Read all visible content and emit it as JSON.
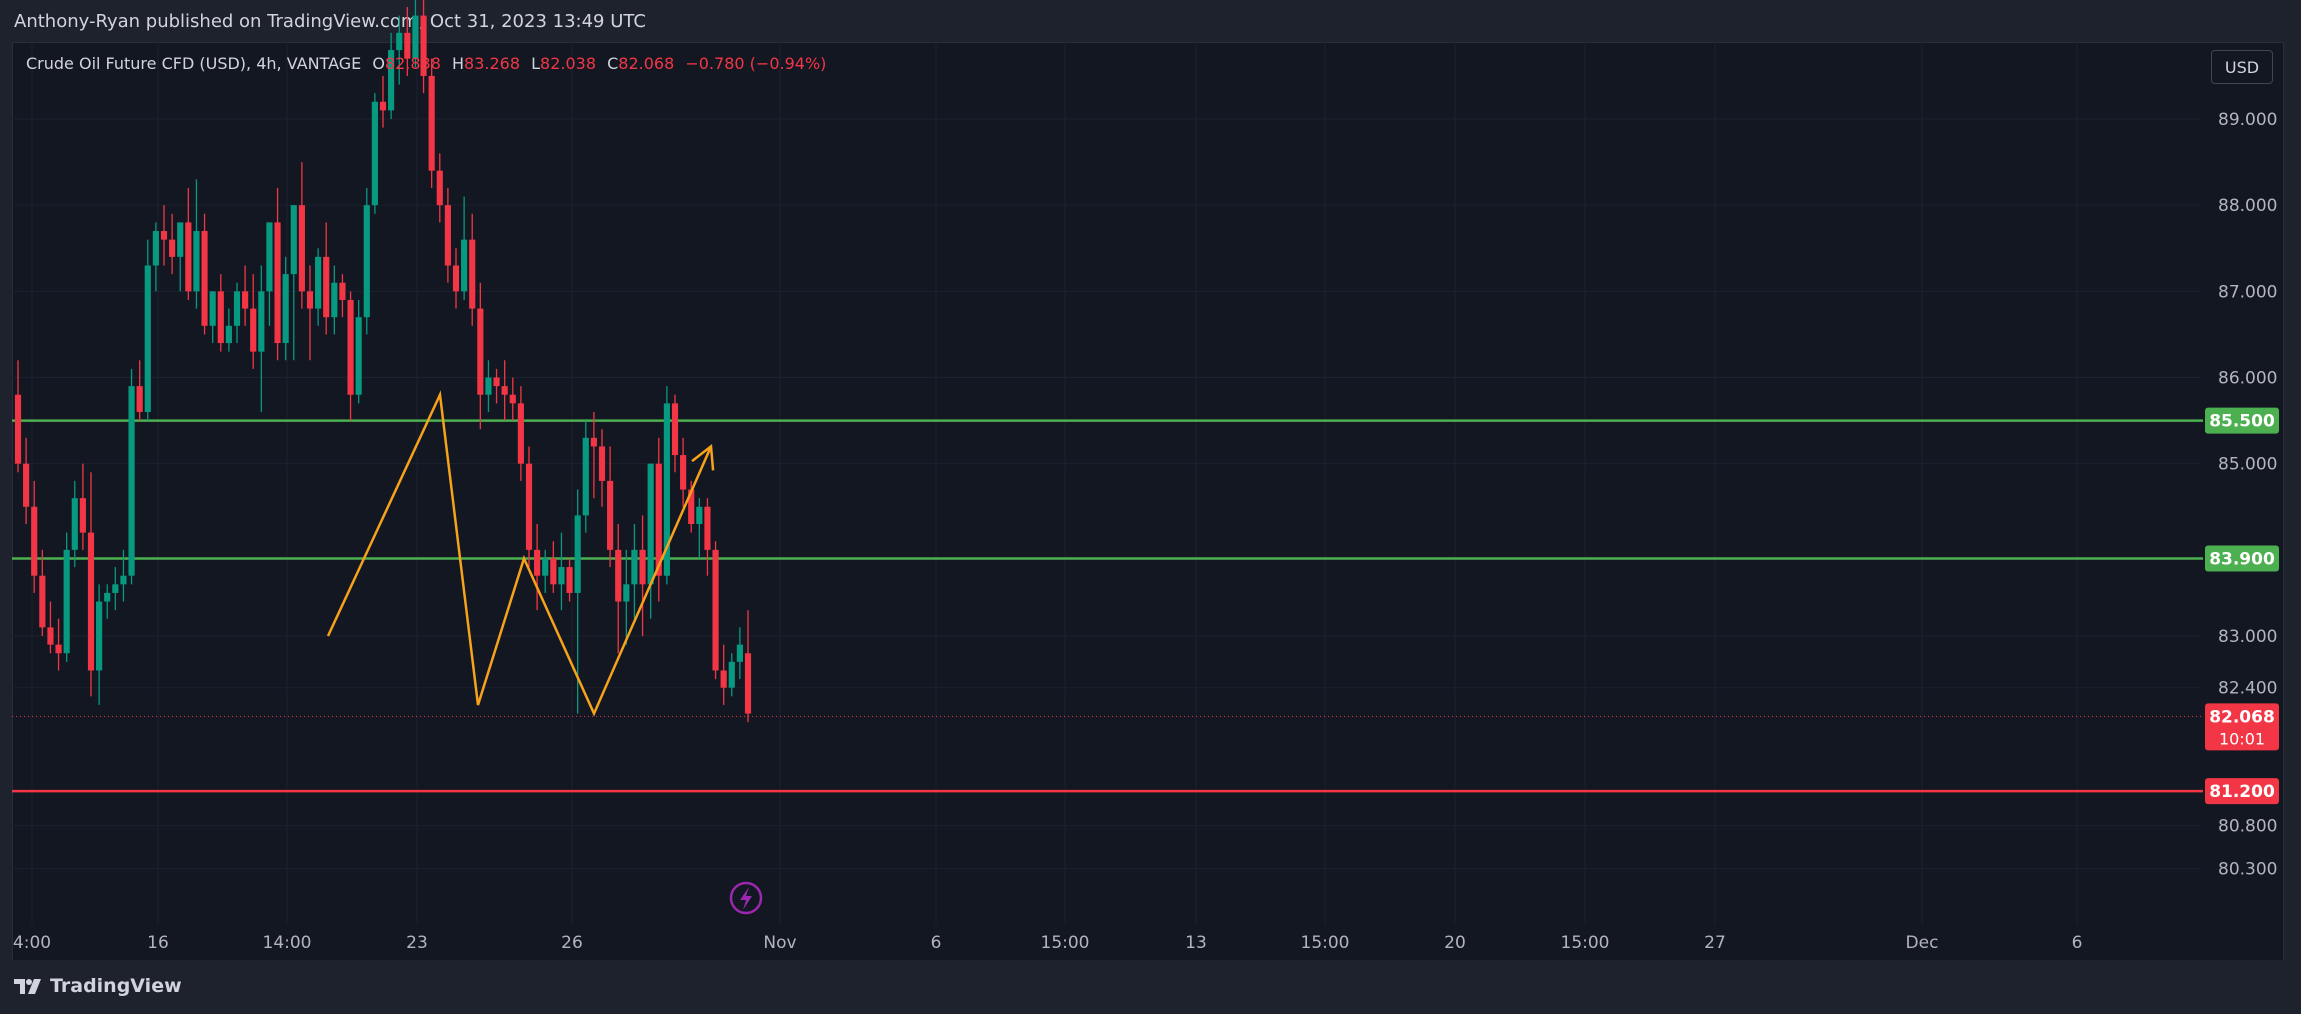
{
  "banner": {
    "text": "Anthony-Ryan published on TradingView.com, Oct 31, 2023 13:49 UTC"
  },
  "legend": {
    "symbol": "Crude Oil Future CFD (USD), 4h, VANTAGE",
    "open_label": "O",
    "open": "82.838",
    "high_label": "H",
    "high": "83.268",
    "low_label": "L",
    "low": "82.038",
    "close_label": "C",
    "close": "82.068",
    "change": "−0.780 (−0.94%)"
  },
  "currency_button": "USD",
  "brand": "TradingView",
  "colors": {
    "background": "#131722",
    "up": "#089981",
    "down": "#f23645",
    "support_line": "#4caf50",
    "resistance_line": "#f23645",
    "drawing": "#f7a21b",
    "grid": "#1c2030"
  },
  "chart_data": {
    "type": "candlestick",
    "interval": "4h",
    "y_axis_ticks": [
      89,
      88,
      87,
      86,
      85,
      83,
      82.4,
      80.8,
      80.3
    ],
    "y_axis_tick_labels": [
      "89.000",
      "88.000",
      "87.000",
      "86.000",
      "85.000",
      "83.000",
      "82.400",
      "80.800",
      "80.300"
    ],
    "ylim": [
      79.85,
      90.5
    ],
    "x_axis_tick_labels": [
      "4:00",
      "16",
      "14:00",
      "23",
      "26",
      "Nov",
      "6",
      "15:00",
      "13",
      "15:00",
      "20",
      "15:00",
      "27",
      "Dec",
      "6"
    ],
    "horizontal_lines": [
      {
        "price": 85.5,
        "label": "85.500",
        "color": "#4caf50"
      },
      {
        "price": 83.9,
        "label": "83.900",
        "color": "#4caf50"
      },
      {
        "price": 81.2,
        "label": "81.200",
        "color": "#f23645"
      }
    ],
    "last_price": {
      "price": 82.068,
      "label": "82.068",
      "countdown": "10:01"
    },
    "candles": [
      {
        "o": 85.8,
        "h": 86.2,
        "l": 84.9,
        "c": 85.0
      },
      {
        "o": 85.0,
        "h": 85.3,
        "l": 84.3,
        "c": 84.5
      },
      {
        "o": 84.5,
        "h": 84.8,
        "l": 83.5,
        "c": 83.7
      },
      {
        "o": 83.7,
        "h": 84.0,
        "l": 83.0,
        "c": 83.1
      },
      {
        "o": 83.1,
        "h": 83.4,
        "l": 82.8,
        "c": 82.9
      },
      {
        "o": 82.9,
        "h": 83.2,
        "l": 82.6,
        "c": 82.8
      },
      {
        "o": 82.8,
        "h": 84.2,
        "l": 82.7,
        "c": 84.0
      },
      {
        "o": 84.0,
        "h": 84.8,
        "l": 83.8,
        "c": 84.6
      },
      {
        "o": 84.6,
        "h": 85.0,
        "l": 84.0,
        "c": 84.2
      },
      {
        "o": 84.2,
        "h": 84.9,
        "l": 82.3,
        "c": 82.6
      },
      {
        "o": 82.6,
        "h": 83.6,
        "l": 82.2,
        "c": 83.4
      },
      {
        "o": 83.4,
        "h": 83.6,
        "l": 83.2,
        "c": 83.5
      },
      {
        "o": 83.5,
        "h": 83.8,
        "l": 83.3,
        "c": 83.6
      },
      {
        "o": 83.6,
        "h": 84.0,
        "l": 83.4,
        "c": 83.7
      },
      {
        "o": 83.7,
        "h": 86.1,
        "l": 83.6,
        "c": 85.9
      },
      {
        "o": 85.9,
        "h": 86.2,
        "l": 85.5,
        "c": 85.6
      },
      {
        "o": 85.6,
        "h": 87.6,
        "l": 85.5,
        "c": 87.3
      },
      {
        "o": 87.3,
        "h": 87.8,
        "l": 87.0,
        "c": 87.7
      },
      {
        "o": 87.7,
        "h": 88.0,
        "l": 87.3,
        "c": 87.6
      },
      {
        "o": 87.6,
        "h": 87.9,
        "l": 87.2,
        "c": 87.4
      },
      {
        "o": 87.4,
        "h": 87.8,
        "l": 87.0,
        "c": 87.8
      },
      {
        "o": 87.8,
        "h": 88.2,
        "l": 86.9,
        "c": 87.0
      },
      {
        "o": 87.0,
        "h": 88.3,
        "l": 86.8,
        "c": 87.7
      },
      {
        "o": 87.7,
        "h": 87.9,
        "l": 86.5,
        "c": 86.6
      },
      {
        "o": 86.6,
        "h": 87.0,
        "l": 86.4,
        "c": 87.0
      },
      {
        "o": 87.0,
        "h": 87.2,
        "l": 86.3,
        "c": 86.4
      },
      {
        "o": 86.4,
        "h": 86.8,
        "l": 86.3,
        "c": 86.6
      },
      {
        "o": 86.6,
        "h": 87.1,
        "l": 86.4,
        "c": 87.0
      },
      {
        "o": 87.0,
        "h": 87.3,
        "l": 86.6,
        "c": 86.8
      },
      {
        "o": 86.8,
        "h": 87.2,
        "l": 86.1,
        "c": 86.3
      },
      {
        "o": 86.3,
        "h": 87.3,
        "l": 85.6,
        "c": 87.0
      },
      {
        "o": 87.0,
        "h": 87.8,
        "l": 86.6,
        "c": 87.8
      },
      {
        "o": 87.8,
        "h": 88.2,
        "l": 86.2,
        "c": 86.4
      },
      {
        "o": 86.4,
        "h": 87.4,
        "l": 86.2,
        "c": 87.2
      },
      {
        "o": 87.2,
        "h": 88.0,
        "l": 86.2,
        "c": 88.0
      },
      {
        "o": 88.0,
        "h": 88.5,
        "l": 86.8,
        "c": 87.0
      },
      {
        "o": 87.0,
        "h": 87.3,
        "l": 86.2,
        "c": 86.8
      },
      {
        "o": 86.8,
        "h": 87.5,
        "l": 86.6,
        "c": 87.4
      },
      {
        "o": 87.4,
        "h": 87.8,
        "l": 86.5,
        "c": 86.7
      },
      {
        "o": 86.7,
        "h": 87.3,
        "l": 86.5,
        "c": 87.1
      },
      {
        "o": 87.1,
        "h": 87.2,
        "l": 86.7,
        "c": 86.9
      },
      {
        "o": 86.9,
        "h": 87.0,
        "l": 85.5,
        "c": 85.8
      },
      {
        "o": 85.8,
        "h": 86.9,
        "l": 85.7,
        "c": 86.7
      },
      {
        "o": 86.7,
        "h": 88.2,
        "l": 86.5,
        "c": 88.0
      },
      {
        "o": 88.0,
        "h": 89.3,
        "l": 87.9,
        "c": 89.2
      },
      {
        "o": 89.2,
        "h": 89.5,
        "l": 88.9,
        "c": 89.1
      },
      {
        "o": 89.1,
        "h": 90.0,
        "l": 89.0,
        "c": 89.8
      },
      {
        "o": 89.8,
        "h": 90.2,
        "l": 89.4,
        "c": 90.0
      },
      {
        "o": 90.0,
        "h": 90.3,
        "l": 89.5,
        "c": 89.7
      },
      {
        "o": 89.7,
        "h": 90.4,
        "l": 89.6,
        "c": 90.2
      },
      {
        "o": 90.2,
        "h": 90.5,
        "l": 89.3,
        "c": 89.5
      },
      {
        "o": 89.5,
        "h": 89.7,
        "l": 88.2,
        "c": 88.4
      },
      {
        "o": 88.4,
        "h": 88.6,
        "l": 87.8,
        "c": 88.0
      },
      {
        "o": 88.0,
        "h": 88.2,
        "l": 87.1,
        "c": 87.3
      },
      {
        "o": 87.3,
        "h": 87.5,
        "l": 86.8,
        "c": 87.0
      },
      {
        "o": 87.0,
        "h": 88.1,
        "l": 86.9,
        "c": 87.6
      },
      {
        "o": 87.6,
        "h": 87.9,
        "l": 86.6,
        "c": 86.8
      },
      {
        "o": 86.8,
        "h": 87.1,
        "l": 85.4,
        "c": 85.8
      },
      {
        "o": 85.8,
        "h": 86.2,
        "l": 85.6,
        "c": 86.0
      },
      {
        "o": 86.0,
        "h": 86.1,
        "l": 85.7,
        "c": 85.9
      },
      {
        "o": 85.9,
        "h": 86.2,
        "l": 85.5,
        "c": 85.8
      },
      {
        "o": 85.8,
        "h": 86.0,
        "l": 85.5,
        "c": 85.7
      },
      {
        "o": 85.7,
        "h": 85.9,
        "l": 84.8,
        "c": 85.0
      },
      {
        "o": 85.0,
        "h": 85.2,
        "l": 83.8,
        "c": 84.0
      },
      {
        "o": 84.0,
        "h": 84.3,
        "l": 83.3,
        "c": 83.7
      },
      {
        "o": 83.7,
        "h": 84.0,
        "l": 83.5,
        "c": 83.9
      },
      {
        "o": 83.9,
        "h": 84.1,
        "l": 83.5,
        "c": 83.6
      },
      {
        "o": 83.6,
        "h": 84.2,
        "l": 83.3,
        "c": 83.8
      },
      {
        "o": 83.8,
        "h": 83.9,
        "l": 83.4,
        "c": 83.5
      },
      {
        "o": 83.5,
        "h": 84.7,
        "l": 82.1,
        "c": 84.4
      },
      {
        "o": 84.4,
        "h": 85.5,
        "l": 84.2,
        "c": 85.3
      },
      {
        "o": 85.3,
        "h": 85.6,
        "l": 84.6,
        "c": 85.2
      },
      {
        "o": 85.2,
        "h": 85.4,
        "l": 84.5,
        "c": 84.8
      },
      {
        "o": 84.8,
        "h": 85.2,
        "l": 83.8,
        "c": 84.0
      },
      {
        "o": 84.0,
        "h": 84.3,
        "l": 82.8,
        "c": 83.4
      },
      {
        "o": 83.4,
        "h": 84.0,
        "l": 82.9,
        "c": 83.6
      },
      {
        "o": 83.6,
        "h": 84.3,
        "l": 83.2,
        "c": 84.0
      },
      {
        "o": 84.0,
        "h": 84.4,
        "l": 83.0,
        "c": 83.6
      },
      {
        "o": 83.6,
        "h": 85.0,
        "l": 83.2,
        "c": 85.0
      },
      {
        "o": 85.0,
        "h": 85.3,
        "l": 83.4,
        "c": 83.7
      },
      {
        "o": 83.7,
        "h": 85.9,
        "l": 83.6,
        "c": 85.7
      },
      {
        "o": 85.7,
        "h": 85.8,
        "l": 84.9,
        "c": 85.1
      },
      {
        "o": 85.1,
        "h": 85.3,
        "l": 84.5,
        "c": 84.7
      },
      {
        "o": 84.7,
        "h": 84.8,
        "l": 84.2,
        "c": 84.3
      },
      {
        "o": 84.3,
        "h": 84.6,
        "l": 83.9,
        "c": 84.5
      },
      {
        "o": 84.5,
        "h": 84.6,
        "l": 83.7,
        "c": 84.0
      },
      {
        "o": 84.0,
        "h": 84.1,
        "l": 82.5,
        "c": 82.6
      },
      {
        "o": 82.6,
        "h": 82.9,
        "l": 82.2,
        "c": 82.4
      },
      {
        "o": 82.4,
        "h": 82.8,
        "l": 82.3,
        "c": 82.7
      },
      {
        "o": 82.7,
        "h": 83.1,
        "l": 82.5,
        "c": 82.9
      },
      {
        "o": 82.8,
        "h": 83.3,
        "l": 82.0,
        "c": 82.1
      }
    ],
    "drawings": [
      {
        "type": "polyline",
        "points": [
          [
            328,
            83.0
          ],
          [
            440,
            85.8
          ],
          [
            478,
            82.2
          ],
          [
            524,
            83.9
          ],
          [
            594,
            82.1
          ],
          [
            711,
            85.2
          ]
        ],
        "arrow": true
      }
    ]
  }
}
